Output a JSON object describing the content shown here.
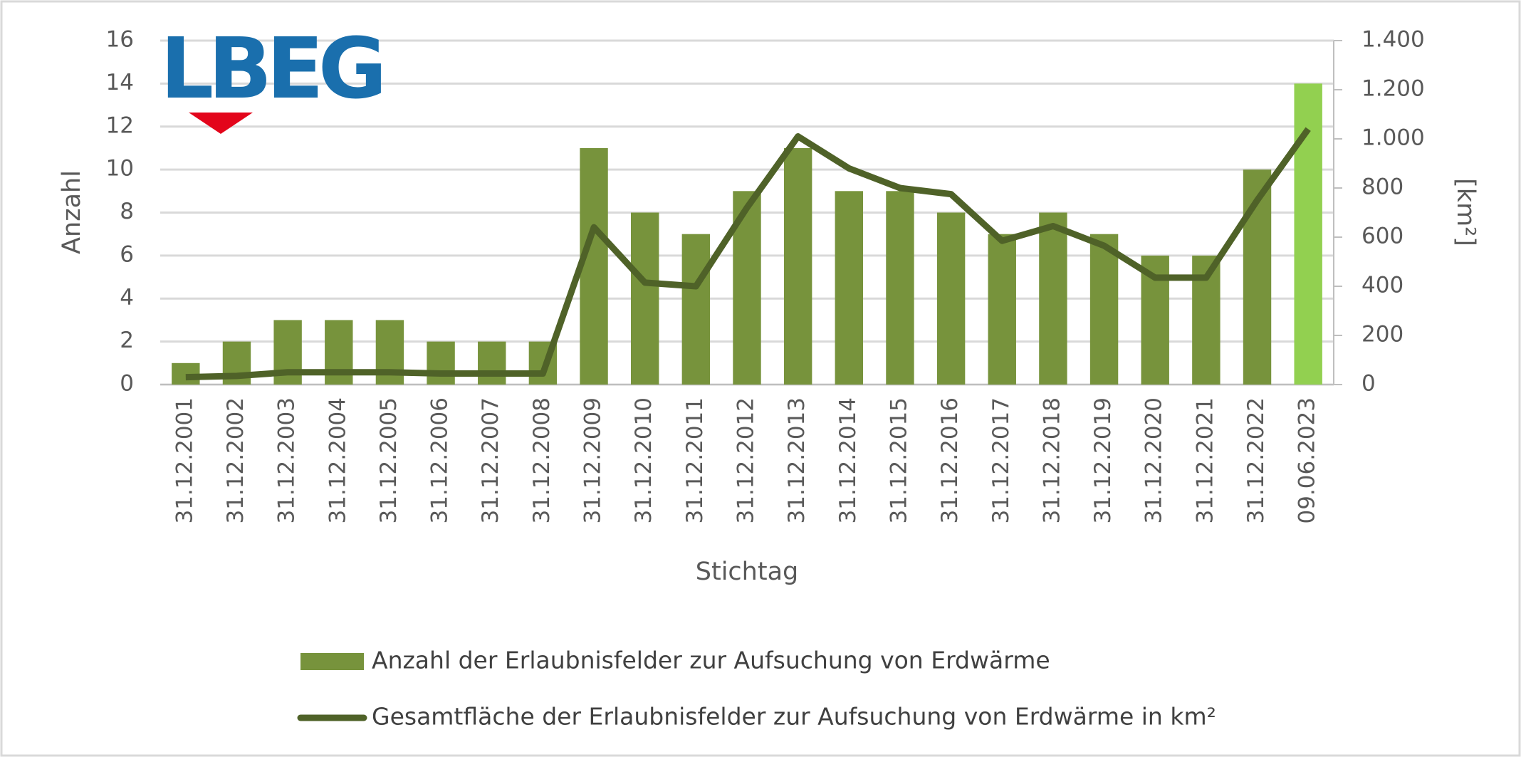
{
  "chart_data": {
    "type": "bar-line",
    "logo": "LBEG",
    "x_label": "Stichtag",
    "y_label": "Anzahl",
    "y2_label": "[km²]",
    "categories": [
      "31.12.2001",
      "31.12.2002",
      "31.12.2003",
      "31.12.2004",
      "31.12.2005",
      "31.12.2006",
      "31.12.2007",
      "31.12.2008",
      "31.12.2009",
      "31.12.2010",
      "31.12.2011",
      "31.12.2012",
      "31.12.2013",
      "31.12.2014",
      "31.12.2015",
      "31.12.2016",
      "31.12.2017",
      "31.12.2018",
      "31.12.2019",
      "31.12.2020",
      "31.12.2021",
      "31.12.2022",
      "09.06.2023"
    ],
    "series": [
      {
        "name": "Anzahl der Erlaubnisfelder zur Aufsuchung von Erdwärme",
        "type": "bar",
        "color": "#77933c",
        "colors": [
          "#77933c",
          "#77933c",
          "#77933c",
          "#77933c",
          "#77933c",
          "#77933c",
          "#77933c",
          "#77933c",
          "#77933c",
          "#77933c",
          "#77933c",
          "#77933c",
          "#77933c",
          "#77933c",
          "#77933c",
          "#77933c",
          "#77933c",
          "#77933c",
          "#77933c",
          "#77933c",
          "#77933c",
          "#77933c",
          "#92d050"
        ],
        "values": [
          1,
          2,
          3,
          3,
          3,
          2,
          2,
          2,
          11,
          8,
          7,
          9,
          11,
          9,
          9,
          8,
          7,
          8,
          7,
          6,
          6,
          10,
          14
        ]
      },
      {
        "name": "Gesamtfläche der Erlaubnisfelder zur Aufsuchung von Erdwärme in km²",
        "type": "line",
        "axis": "y2",
        "color": "#4f6228",
        "values": [
          30,
          35,
          50,
          50,
          50,
          45,
          45,
          45,
          640,
          415,
          400,
          720,
          1010,
          880,
          800,
          775,
          585,
          645,
          565,
          435,
          435,
          750,
          1040
        ]
      }
    ],
    "ylim": [
      0,
      16
    ],
    "yticks": [
      0,
      2,
      4,
      6,
      8,
      10,
      12,
      14,
      16
    ],
    "y2lim": [
      0,
      1400
    ],
    "y2ticks": [
      0,
      200,
      400,
      600,
      800,
      {
        "value": 1000,
        "label": "1.000"
      },
      {
        "value": 1200,
        "label": "1.200"
      },
      {
        "value": 1400,
        "label": "1.400"
      }
    ],
    "grid": true
  }
}
